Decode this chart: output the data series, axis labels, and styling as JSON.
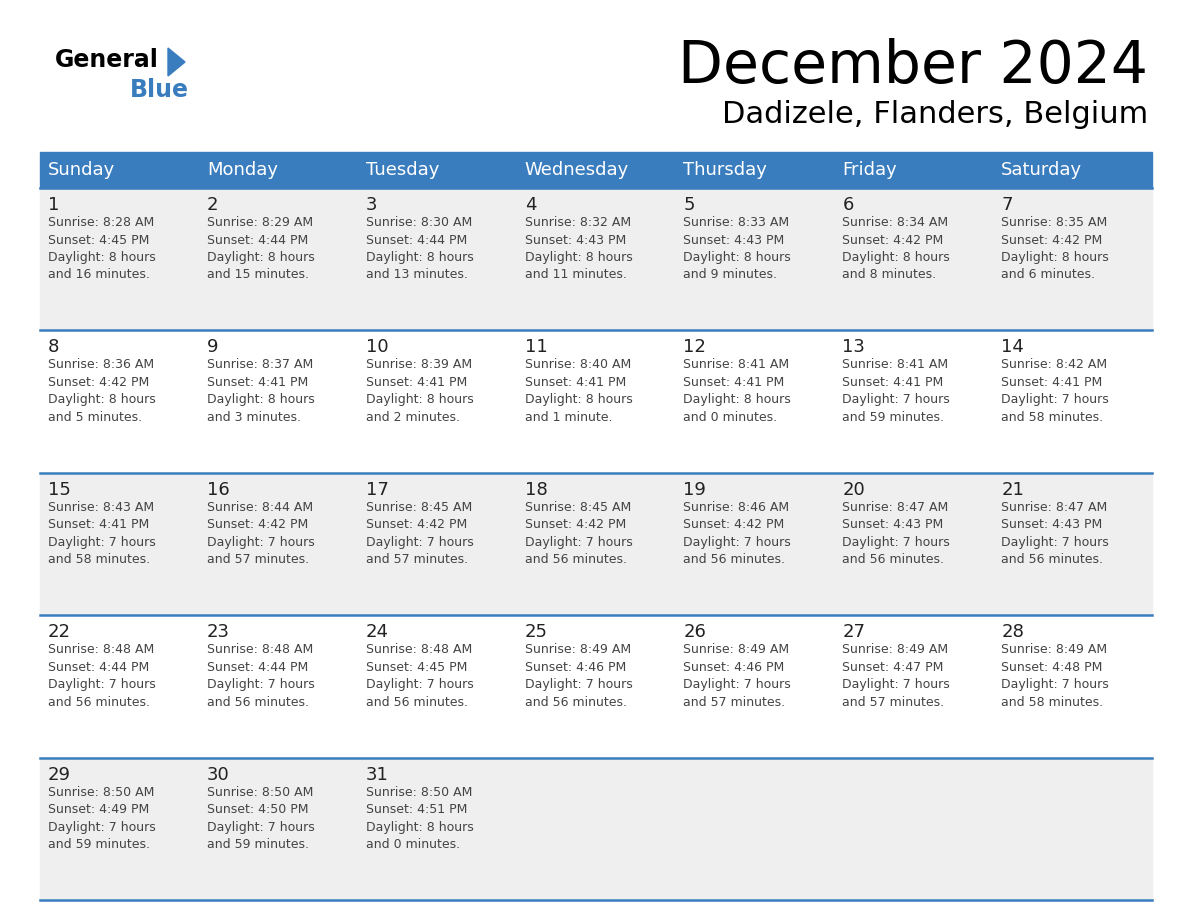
{
  "title": "December 2024",
  "subtitle": "Dadizele, Flanders, Belgium",
  "header_color": "#3a7dbf",
  "header_text_color": "#ffffff",
  "days_of_week": [
    "Sunday",
    "Monday",
    "Tuesday",
    "Wednesday",
    "Thursday",
    "Friday",
    "Saturday"
  ],
  "bg_color_odd": "#efefef",
  "bg_color_even": "#ffffff",
  "cell_text_color": "#444444",
  "day_num_color": "#222222",
  "line_color": "#3a7dbf",
  "calendar": [
    [
      {
        "day": 1,
        "sunrise": "8:28 AM",
        "sunset": "4:45 PM",
        "daylight": "8 hours and 16 minutes."
      },
      {
        "day": 2,
        "sunrise": "8:29 AM",
        "sunset": "4:44 PM",
        "daylight": "8 hours and 15 minutes."
      },
      {
        "day": 3,
        "sunrise": "8:30 AM",
        "sunset": "4:44 PM",
        "daylight": "8 hours and 13 minutes."
      },
      {
        "day": 4,
        "sunrise": "8:32 AM",
        "sunset": "4:43 PM",
        "daylight": "8 hours and 11 minutes."
      },
      {
        "day": 5,
        "sunrise": "8:33 AM",
        "sunset": "4:43 PM",
        "daylight": "8 hours and 9 minutes."
      },
      {
        "day": 6,
        "sunrise": "8:34 AM",
        "sunset": "4:42 PM",
        "daylight": "8 hours and 8 minutes."
      },
      {
        "day": 7,
        "sunrise": "8:35 AM",
        "sunset": "4:42 PM",
        "daylight": "8 hours and 6 minutes."
      }
    ],
    [
      {
        "day": 8,
        "sunrise": "8:36 AM",
        "sunset": "4:42 PM",
        "daylight": "8 hours and 5 minutes."
      },
      {
        "day": 9,
        "sunrise": "8:37 AM",
        "sunset": "4:41 PM",
        "daylight": "8 hours and 3 minutes."
      },
      {
        "day": 10,
        "sunrise": "8:39 AM",
        "sunset": "4:41 PM",
        "daylight": "8 hours and 2 minutes."
      },
      {
        "day": 11,
        "sunrise": "8:40 AM",
        "sunset": "4:41 PM",
        "daylight": "8 hours and 1 minute."
      },
      {
        "day": 12,
        "sunrise": "8:41 AM",
        "sunset": "4:41 PM",
        "daylight": "8 hours and 0 minutes."
      },
      {
        "day": 13,
        "sunrise": "8:41 AM",
        "sunset": "4:41 PM",
        "daylight": "7 hours and 59 minutes."
      },
      {
        "day": 14,
        "sunrise": "8:42 AM",
        "sunset": "4:41 PM",
        "daylight": "7 hours and 58 minutes."
      }
    ],
    [
      {
        "day": 15,
        "sunrise": "8:43 AM",
        "sunset": "4:41 PM",
        "daylight": "7 hours and 58 minutes."
      },
      {
        "day": 16,
        "sunrise": "8:44 AM",
        "sunset": "4:42 PM",
        "daylight": "7 hours and 57 minutes."
      },
      {
        "day": 17,
        "sunrise": "8:45 AM",
        "sunset": "4:42 PM",
        "daylight": "7 hours and 57 minutes."
      },
      {
        "day": 18,
        "sunrise": "8:45 AM",
        "sunset": "4:42 PM",
        "daylight": "7 hours and 56 minutes."
      },
      {
        "day": 19,
        "sunrise": "8:46 AM",
        "sunset": "4:42 PM",
        "daylight": "7 hours and 56 minutes."
      },
      {
        "day": 20,
        "sunrise": "8:47 AM",
        "sunset": "4:43 PM",
        "daylight": "7 hours and 56 minutes."
      },
      {
        "day": 21,
        "sunrise": "8:47 AM",
        "sunset": "4:43 PM",
        "daylight": "7 hours and 56 minutes."
      }
    ],
    [
      {
        "day": 22,
        "sunrise": "8:48 AM",
        "sunset": "4:44 PM",
        "daylight": "7 hours and 56 minutes."
      },
      {
        "day": 23,
        "sunrise": "8:48 AM",
        "sunset": "4:44 PM",
        "daylight": "7 hours and 56 minutes."
      },
      {
        "day": 24,
        "sunrise": "8:48 AM",
        "sunset": "4:45 PM",
        "daylight": "7 hours and 56 minutes."
      },
      {
        "day": 25,
        "sunrise": "8:49 AM",
        "sunset": "4:46 PM",
        "daylight": "7 hours and 56 minutes."
      },
      {
        "day": 26,
        "sunrise": "8:49 AM",
        "sunset": "4:46 PM",
        "daylight": "7 hours and 57 minutes."
      },
      {
        "day": 27,
        "sunrise": "8:49 AM",
        "sunset": "4:47 PM",
        "daylight": "7 hours and 57 minutes."
      },
      {
        "day": 28,
        "sunrise": "8:49 AM",
        "sunset": "4:48 PM",
        "daylight": "7 hours and 58 minutes."
      }
    ],
    [
      {
        "day": 29,
        "sunrise": "8:50 AM",
        "sunset": "4:49 PM",
        "daylight": "7 hours and 59 minutes."
      },
      {
        "day": 30,
        "sunrise": "8:50 AM",
        "sunset": "4:50 PM",
        "daylight": "7 hours and 59 minutes."
      },
      {
        "day": 31,
        "sunrise": "8:50 AM",
        "sunset": "4:51 PM",
        "daylight": "8 hours and 0 minutes."
      },
      null,
      null,
      null,
      null
    ]
  ]
}
